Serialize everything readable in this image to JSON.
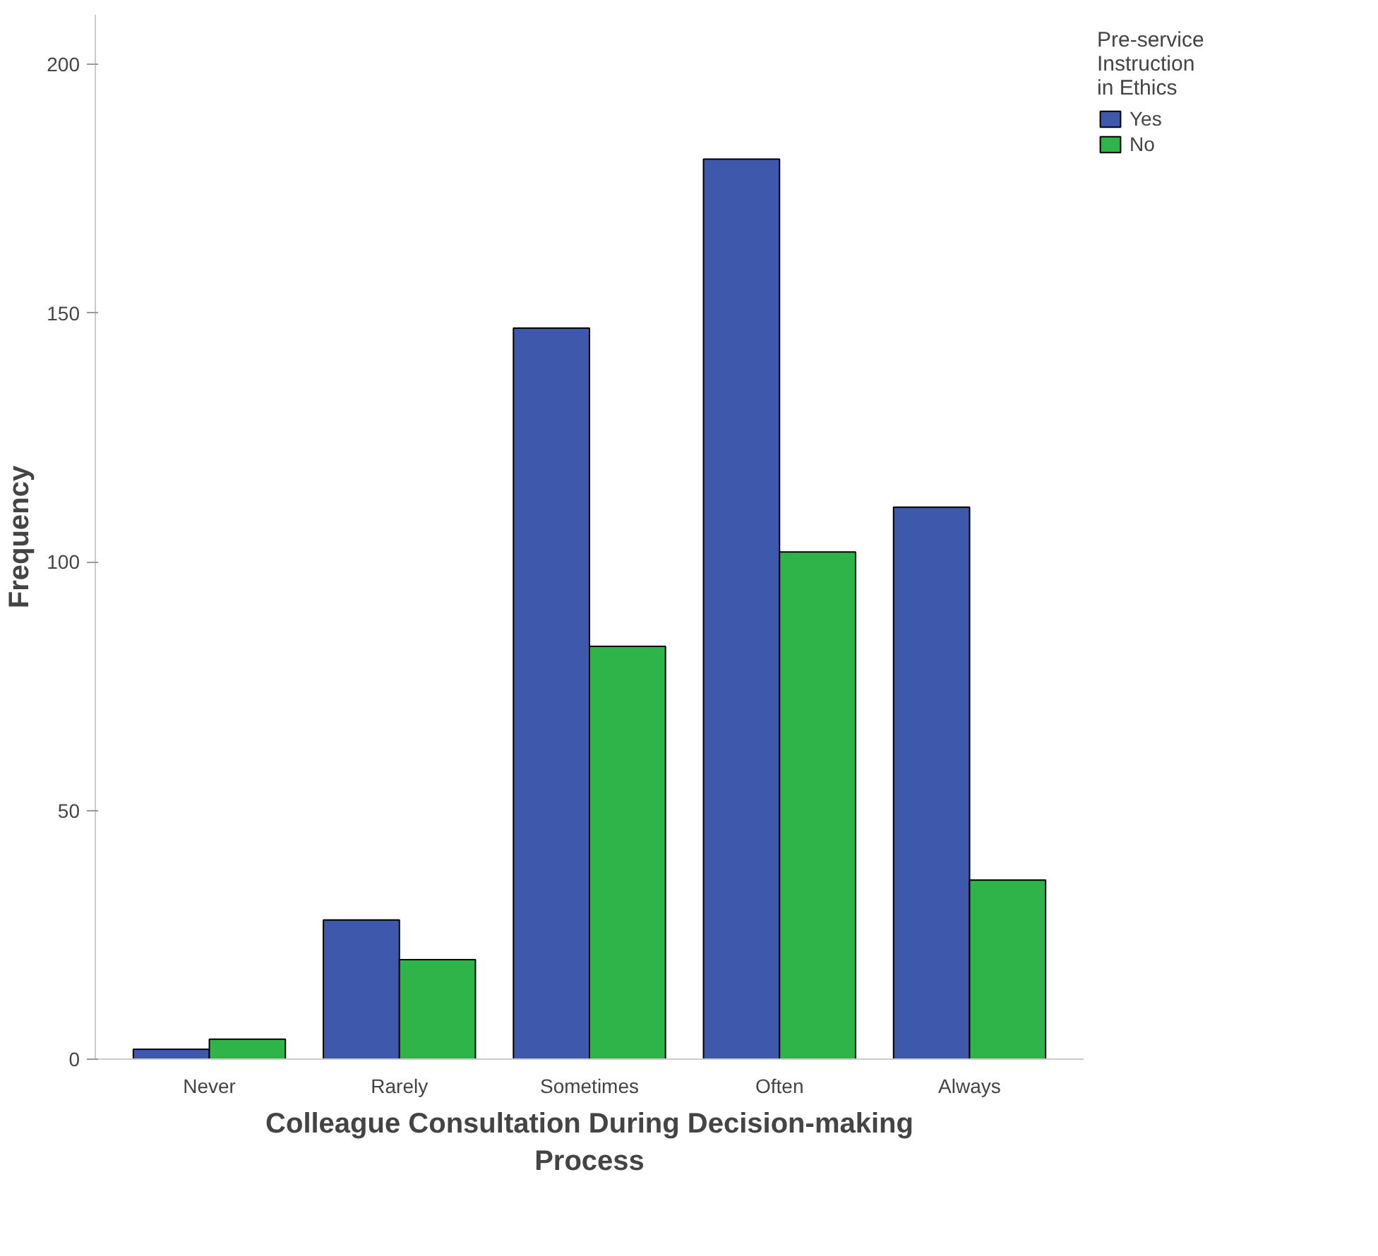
{
  "chart_data": {
    "type": "bar",
    "xlabel": "Colleague Consultation During Decision-making Process",
    "ylabel": "Frequency",
    "legend_title": "Pre-service Instruction in Ethics",
    "categories": [
      "Never",
      "Rarely",
      "Sometimes",
      "Often",
      "Always"
    ],
    "series": [
      {
        "name": "Yes",
        "color": "#3e58ac",
        "values": [
          2,
          28,
          147,
          181,
          111
        ]
      },
      {
        "name": "No",
        "color": "#2fb44a",
        "values": [
          4,
          20,
          83,
          102,
          36
        ]
      }
    ],
    "ylim": [
      0,
      210
    ],
    "yticks": [
      0,
      50,
      100,
      150,
      200
    ],
    "grid": false,
    "legend": "top right"
  }
}
